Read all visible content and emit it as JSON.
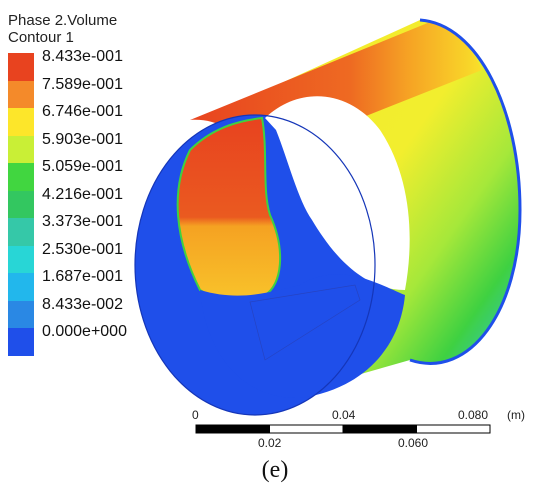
{
  "legend": {
    "title": "Phase 2.Volume",
    "subtitle": "Contour 1",
    "colors": [
      "#e8431f",
      "#f48a2a",
      "#fde62a",
      "#c9ef36",
      "#41d640",
      "#33c760",
      "#35c8a8",
      "#28d6d6",
      "#22b7ec",
      "#2a88e4",
      "#1f4fea"
    ],
    "labels": [
      "8.433e-001",
      "7.589e-001",
      "6.746e-001",
      "5.903e-001",
      "5.059e-001",
      "4.216e-001",
      "3.373e-001",
      "2.530e-001",
      "1.687e-001",
      "8.433e-002",
      "0.000e+000"
    ]
  },
  "scale": {
    "top_ticks": [
      "0",
      "0.04",
      "0.080"
    ],
    "bottom_ticks": [
      "0.02",
      "0.060"
    ],
    "unit": "(m)"
  },
  "caption": "(e)",
  "field_colors": {
    "blue": "#1f4fea",
    "red": "#e8431f",
    "orange": "#f5a222",
    "yellow": "#f9ed2c",
    "green": "#42d335"
  }
}
